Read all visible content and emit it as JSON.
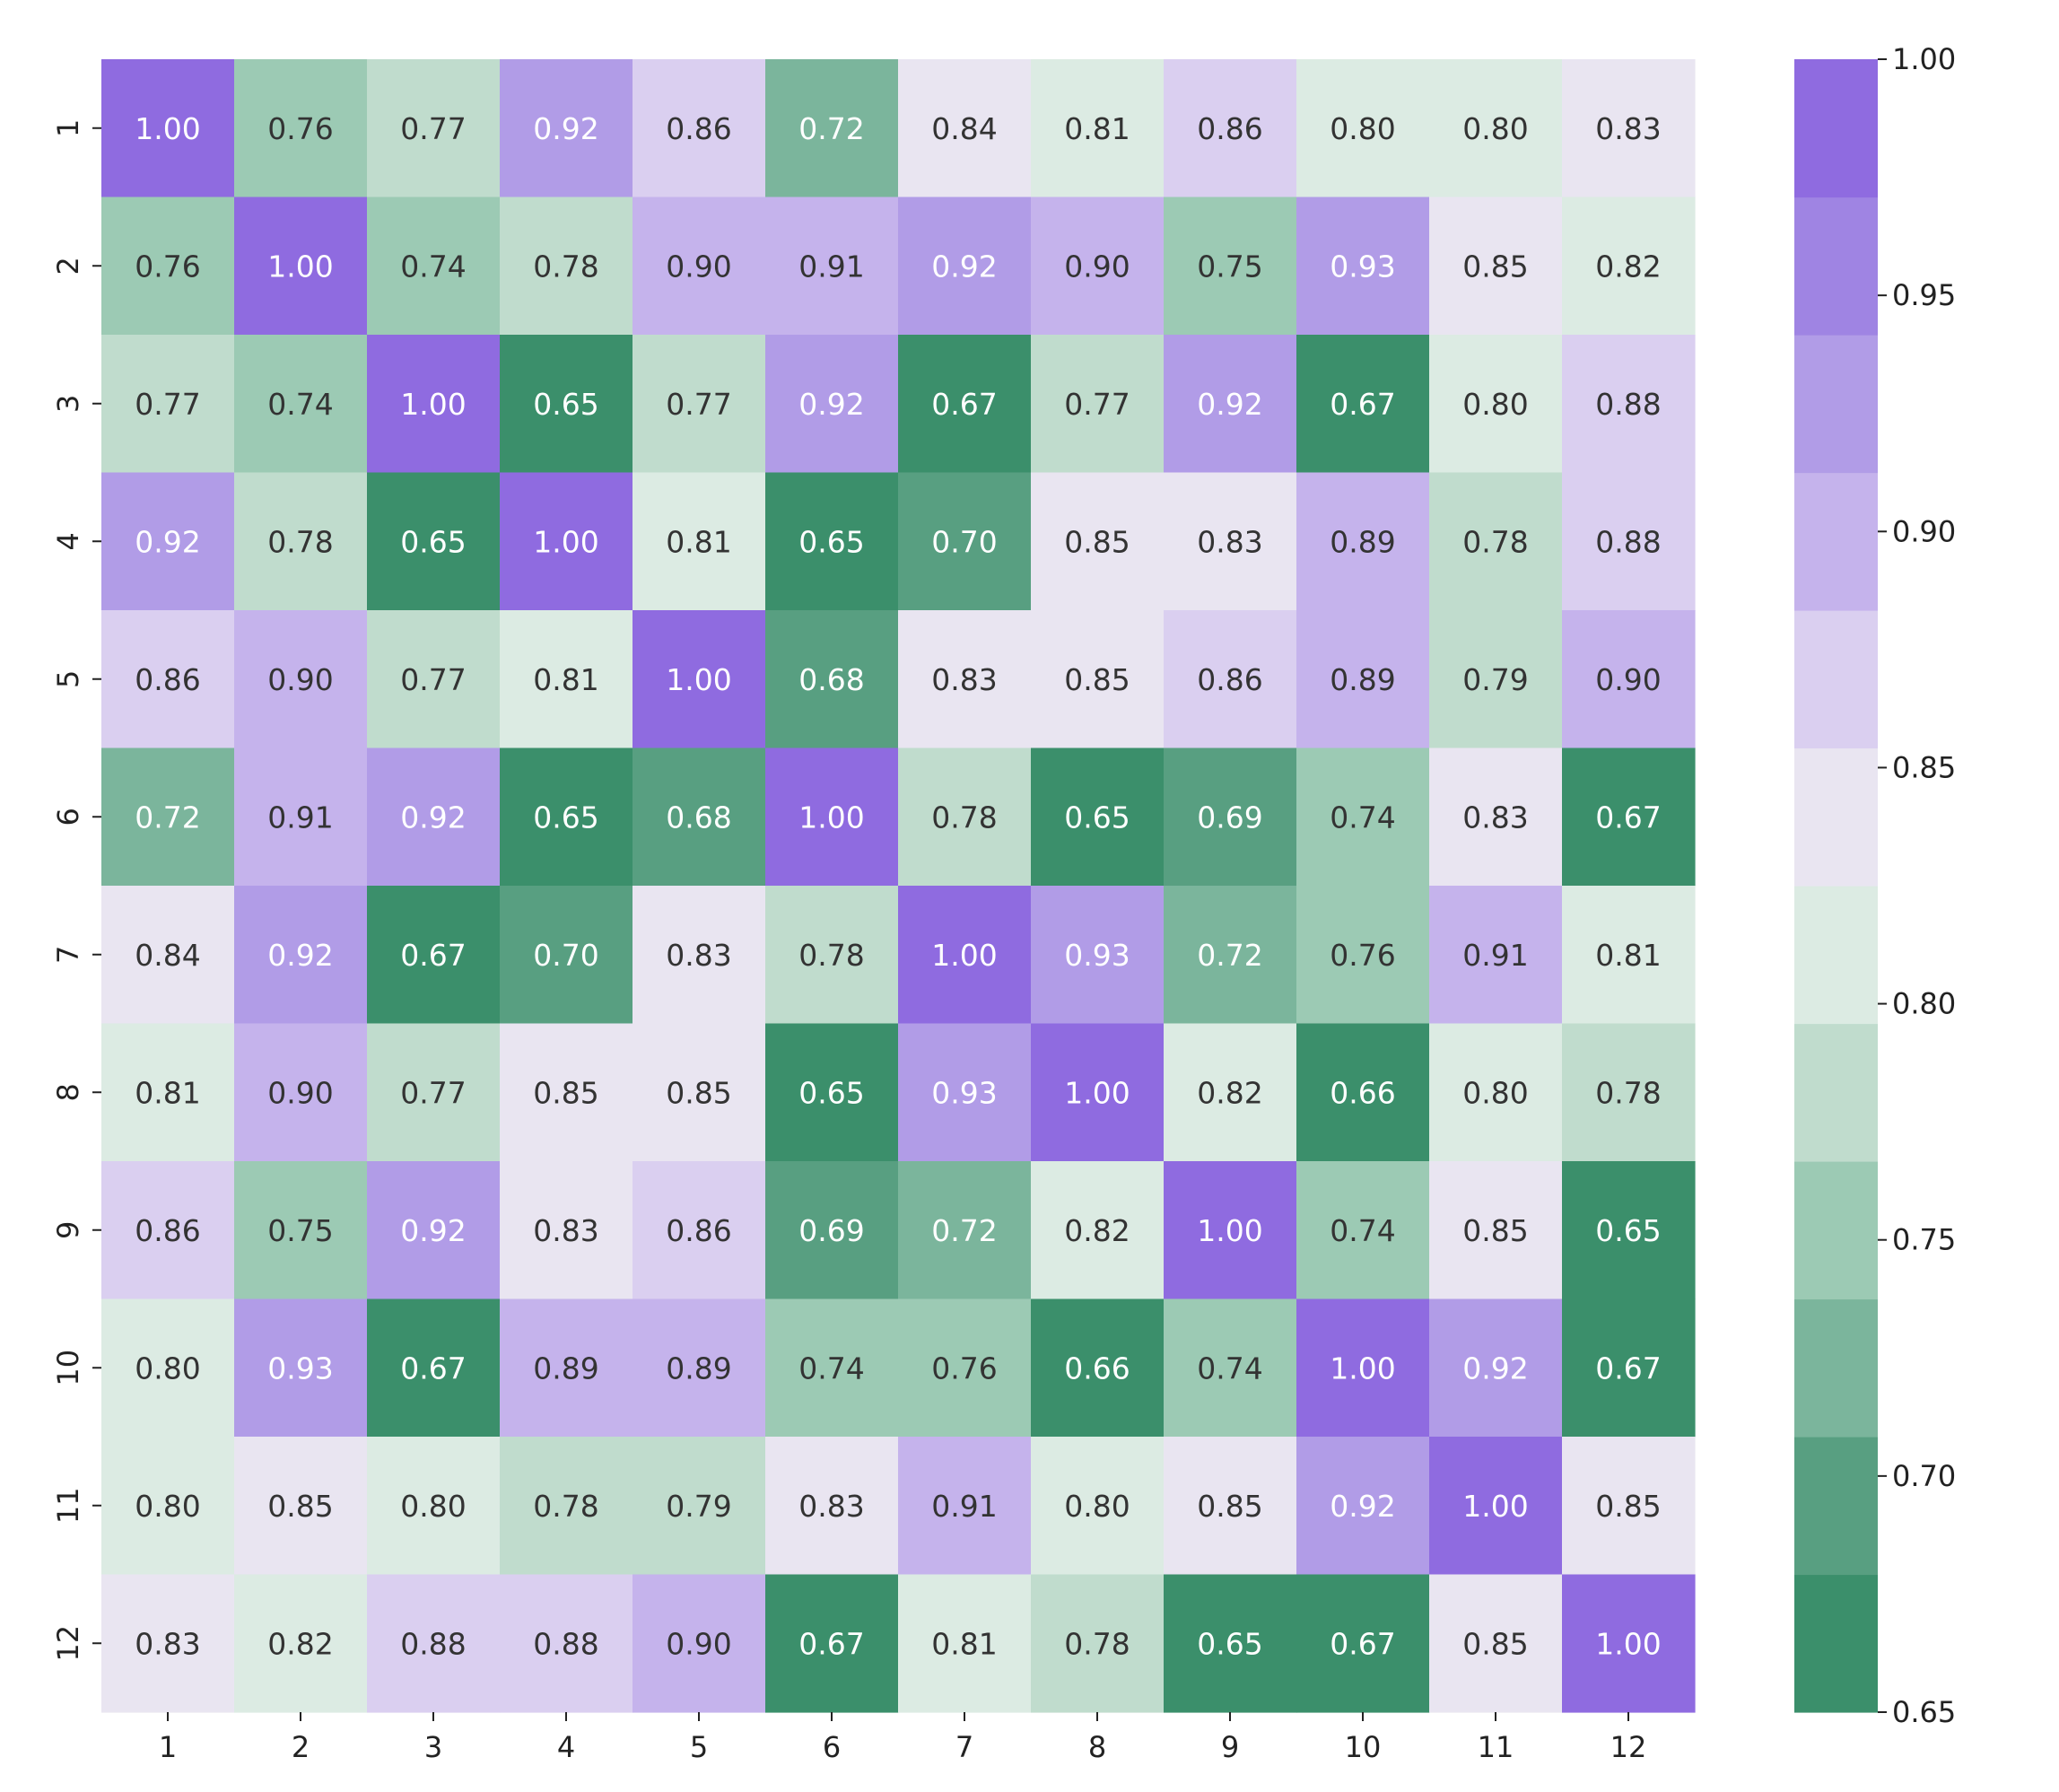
{
  "chart_data": {
    "type": "heatmap",
    "title": "",
    "xlabel": "",
    "ylabel": "",
    "x_categories": [
      "1",
      "2",
      "3",
      "4",
      "5",
      "6",
      "7",
      "8",
      "9",
      "10",
      "11",
      "12"
    ],
    "y_categories": [
      "1",
      "2",
      "3",
      "4",
      "5",
      "6",
      "7",
      "8",
      "9",
      "10",
      "11",
      "12"
    ],
    "values": [
      [
        1.0,
        0.76,
        0.77,
        0.92,
        0.86,
        0.72,
        0.84,
        0.81,
        0.86,
        0.8,
        0.8,
        0.83
      ],
      [
        0.76,
        1.0,
        0.74,
        0.78,
        0.9,
        0.91,
        0.92,
        0.9,
        0.75,
        0.93,
        0.85,
        0.82
      ],
      [
        0.77,
        0.74,
        1.0,
        0.65,
        0.77,
        0.92,
        0.67,
        0.77,
        0.92,
        0.67,
        0.8,
        0.88
      ],
      [
        0.92,
        0.78,
        0.65,
        1.0,
        0.81,
        0.65,
        0.7,
        0.85,
        0.83,
        0.89,
        0.78,
        0.88
      ],
      [
        0.86,
        0.9,
        0.77,
        0.81,
        1.0,
        0.68,
        0.83,
        0.85,
        0.86,
        0.89,
        0.79,
        0.9
      ],
      [
        0.72,
        0.91,
        0.92,
        0.65,
        0.68,
        1.0,
        0.78,
        0.65,
        0.69,
        0.74,
        0.83,
        0.67
      ],
      [
        0.84,
        0.92,
        0.67,
        0.7,
        0.83,
        0.78,
        1.0,
        0.93,
        0.72,
        0.76,
        0.91,
        0.81
      ],
      [
        0.81,
        0.9,
        0.77,
        0.85,
        0.85,
        0.65,
        0.93,
        1.0,
        0.82,
        0.66,
        0.8,
        0.78
      ],
      [
        0.86,
        0.75,
        0.92,
        0.83,
        0.86,
        0.69,
        0.72,
        0.82,
        1.0,
        0.74,
        0.85,
        0.65
      ],
      [
        0.8,
        0.93,
        0.67,
        0.89,
        0.89,
        0.74,
        0.76,
        0.66,
        0.74,
        1.0,
        0.92,
        0.67
      ],
      [
        0.8,
        0.85,
        0.8,
        0.78,
        0.79,
        0.83,
        0.91,
        0.8,
        0.85,
        0.92,
        1.0,
        0.85
      ],
      [
        0.83,
        0.82,
        0.88,
        0.88,
        0.9,
        0.67,
        0.81,
        0.78,
        0.65,
        0.67,
        0.85,
        1.0
      ]
    ],
    "value_format_decimals": 2,
    "vmin": 0.65,
    "vmax": 1.0,
    "colorbar": {
      "ticks": [
        "1.00",
        "0.95",
        "0.90",
        "0.85",
        "0.80",
        "0.75",
        "0.70",
        "0.65"
      ],
      "tick_values": [
        1.0,
        0.95,
        0.9,
        0.85,
        0.8,
        0.75,
        0.7,
        0.65
      ],
      "position": "right"
    },
    "palette": [
      "#3b8f6b",
      "#589f81",
      "#7bb59c",
      "#9ccab4",
      "#c0dccd",
      "#dcebe3",
      "#e9e5f1",
      "#dacff0",
      "#c5b3ec",
      "#b19ce7",
      "#9f84e3",
      "#8f6be0"
    ],
    "text_colors": {
      "dark": "#333333",
      "light": "#ffffff"
    }
  }
}
